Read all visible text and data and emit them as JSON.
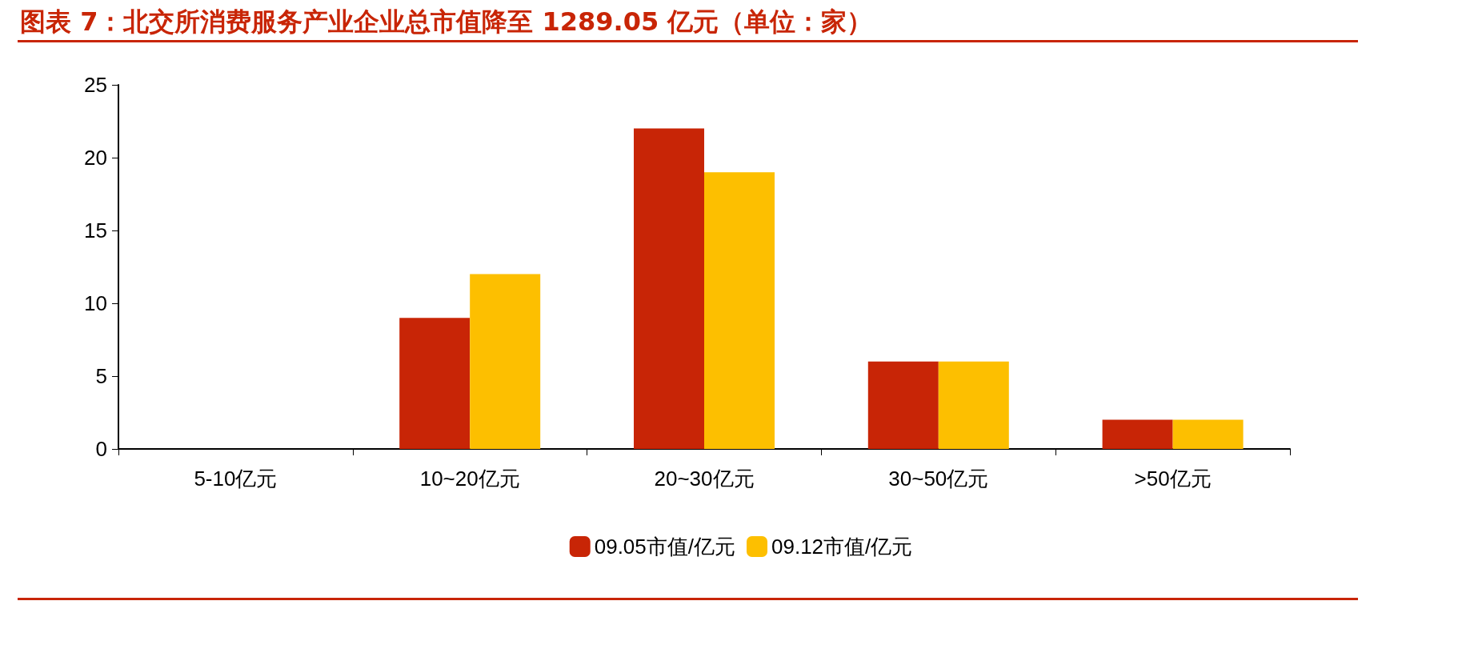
{
  "chart_data": {
    "type": "bar",
    "title": "图表 7：北交所消费服务产业企业总市值降至 1289.05 亿元（单位：家）",
    "categories": [
      "5-10亿元",
      "10~20亿元",
      "20~30亿元",
      "30~50亿元",
      ">50亿元"
    ],
    "series": [
      {
        "name": "09.05市值/亿元",
        "color": "#c82506",
        "values": [
          0,
          9,
          22,
          6,
          2
        ]
      },
      {
        "name": "09.12市值/亿元",
        "color": "#fdbf00",
        "values": [
          0,
          12,
          19,
          6,
          2
        ]
      }
    ],
    "ylim": [
      0,
      25
    ],
    "yticks": [
      0,
      5,
      10,
      15,
      20,
      25
    ],
    "grid": false,
    "legend": "bottom"
  }
}
